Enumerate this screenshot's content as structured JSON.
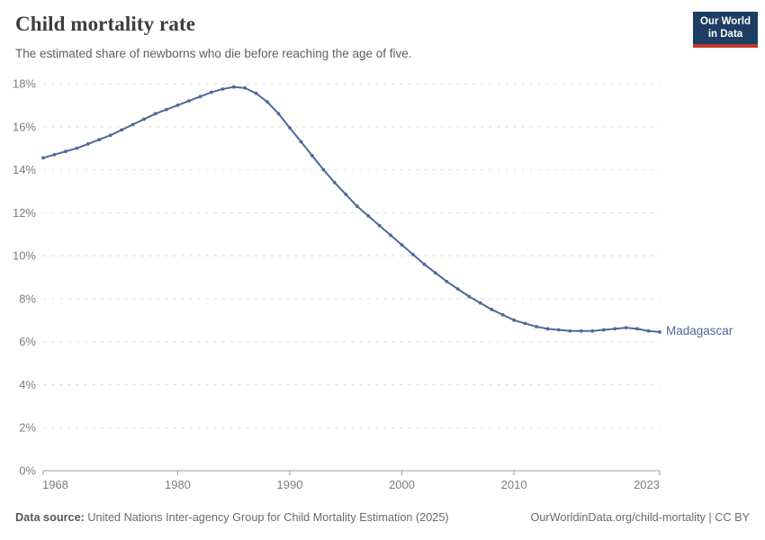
{
  "header": {
    "title": "Child mortality rate",
    "subtitle": "The estimated share of newborns who die before reaching the age of five.",
    "logo": {
      "line1": "Our World",
      "line2": "in Data",
      "bg_color": "#1d3d63",
      "accent_color": "#c0392e"
    }
  },
  "footer": {
    "datasource_label": "Data source:",
    "datasource_text": " United Nations Inter-agency Group for Child Mortality Estimation (2025)",
    "link_text": "OurWorldinData.org/child-mortality | CC BY"
  },
  "chart_data": {
    "type": "line",
    "title": "Child mortality rate",
    "subtitle": "The estimated share of newborns who die before reaching the age of five.",
    "xlabel": "",
    "ylabel": "",
    "xlim": [
      1968,
      2023
    ],
    "ylim": [
      0,
      18
    ],
    "y_tick_step": 2,
    "y_tick_suffix": "%",
    "x_ticks": [
      1968,
      1980,
      1990,
      2000,
      2010,
      2023
    ],
    "grid": "horizontal-dashed",
    "legend": "end-of-line-label",
    "colors": {
      "line": "#4d689c",
      "gridline": "#dedede",
      "axis": "#9e9e9e",
      "tick_label": "#7d7d7d"
    },
    "series": [
      {
        "name": "Madagascar",
        "color": "#4d689c",
        "years": [
          1968,
          1969,
          1970,
          1971,
          1972,
          1973,
          1974,
          1975,
          1976,
          1977,
          1978,
          1979,
          1980,
          1981,
          1982,
          1983,
          1984,
          1985,
          1986,
          1987,
          1988,
          1989,
          1990,
          1991,
          1992,
          1993,
          1994,
          1995,
          1996,
          1997,
          1998,
          1999,
          2000,
          2001,
          2002,
          2003,
          2004,
          2005,
          2006,
          2007,
          2008,
          2009,
          2010,
          2011,
          2012,
          2013,
          2014,
          2015,
          2016,
          2017,
          2018,
          2019,
          2020,
          2021,
          2022,
          2023
        ],
        "values": [
          14.55,
          14.7,
          14.85,
          15.0,
          15.2,
          15.4,
          15.6,
          15.85,
          16.1,
          16.35,
          16.6,
          16.8,
          17.0,
          17.2,
          17.4,
          17.6,
          17.75,
          17.85,
          17.8,
          17.55,
          17.15,
          16.6,
          15.95,
          15.3,
          14.65,
          14.0,
          13.4,
          12.85,
          12.3,
          11.85,
          11.4,
          10.95,
          10.5,
          10.05,
          9.6,
          9.2,
          8.8,
          8.45,
          8.1,
          7.8,
          7.5,
          7.25,
          7.0,
          6.85,
          6.7,
          6.6,
          6.55,
          6.5,
          6.5,
          6.5,
          6.55,
          6.6,
          6.65,
          6.6,
          6.5,
          6.45
        ]
      }
    ]
  }
}
